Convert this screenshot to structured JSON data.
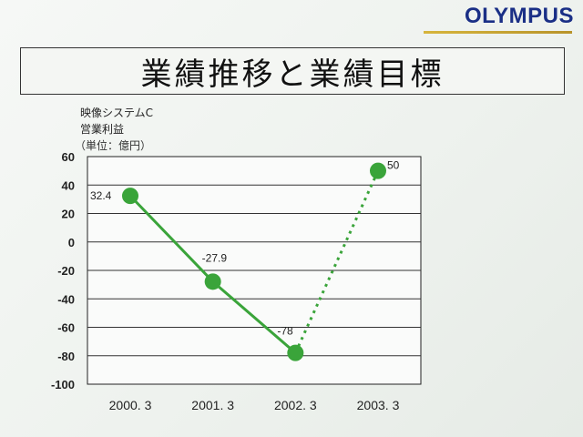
{
  "header": {
    "logo_text": "OLYMPUS",
    "title": "業績推移と業績目標"
  },
  "colors": {
    "series": "#3aa43a",
    "logo": "#1a2f86",
    "logo_underline": "#c9a535"
  },
  "chart_data": {
    "type": "line",
    "title": "",
    "ylabel_lines": [
      "映像システムC",
      "営業利益",
      "（単位：億円）"
    ],
    "categories": [
      "2000. 3",
      "2001. 3",
      "2002. 3",
      "2003. 3"
    ],
    "series": [
      {
        "values": [
          32.4,
          -27.9,
          -78,
          50
        ],
        "data_labels": [
          "32.4",
          "-27.9",
          "-78",
          "50"
        ],
        "segment_styles": [
          "solid",
          "solid",
          "dotted"
        ]
      }
    ],
    "yticks": [
      "60",
      "40",
      "20",
      "0",
      "-20",
      "-40",
      "-60",
      "-80",
      "-100"
    ],
    "ylim": [
      -100,
      60
    ],
    "grid": true,
    "legend": "none"
  }
}
